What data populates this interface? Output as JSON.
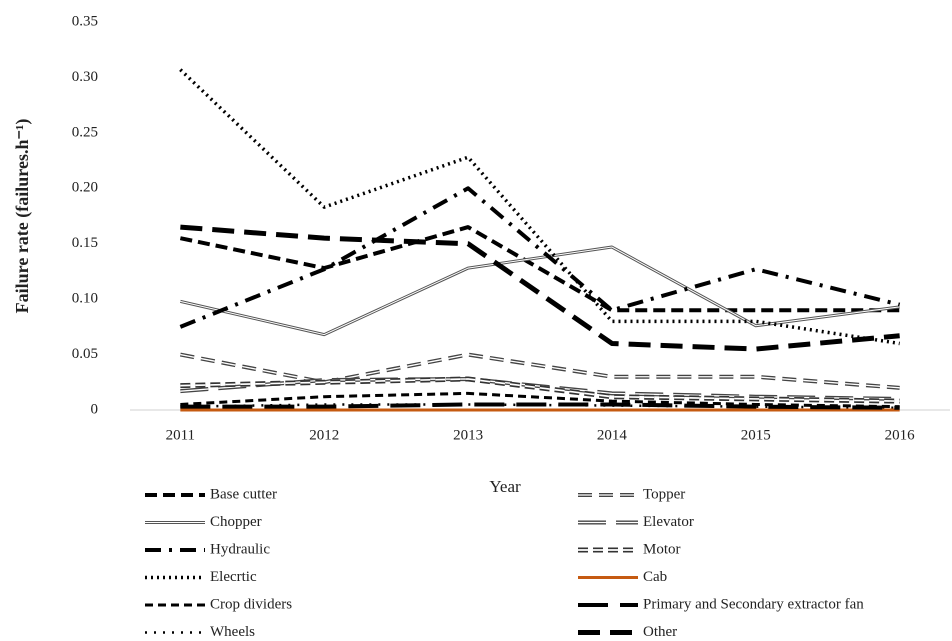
{
  "chart_data": {
    "type": "line",
    "x_label": "Year",
    "y_label": "Failure rate (failures.h⁻¹)",
    "x": [
      2011,
      2012,
      2013,
      2014,
      2015,
      2016
    ],
    "xlim": [
      2010.65,
      2016.35
    ],
    "xticks": [
      2011,
      2012,
      2013,
      2014,
      2015,
      2016
    ],
    "ylim": [
      0,
      0.35
    ],
    "yticks": [
      0,
      0.05,
      {
        "value": 0.1,
        "label": "0.10"
      },
      0.15,
      {
        "value": 0.2,
        "label": "0.20"
      },
      0.25,
      {
        "value": 0.3,
        "label": "0.30"
      },
      0.35
    ],
    "grid": false,
    "legend": "bottom",
    "series": [
      {
        "name": "Base cutter",
        "color": "#000000",
        "dash": "12,6",
        "width": 4,
        "double": false,
        "values": [
          0.155,
          0.128,
          0.165,
          0.09,
          0.09,
          0.09
        ]
      },
      {
        "name": "Chopper",
        "color": "#555555",
        "dash": "none",
        "width": 3,
        "double": true,
        "values": [
          0.098,
          0.068,
          0.128,
          0.147,
          0.076,
          0.093
        ]
      },
      {
        "name": "Hydraulic",
        "color": "#000000",
        "dash": "16,8,3,8",
        "width": 4,
        "double": false,
        "values": [
          0.075,
          0.127,
          0.2,
          0.09,
          0.127,
          0.095
        ]
      },
      {
        "name": "Elecrtic",
        "color": "#000000",
        "dash": "2,4",
        "width": 3.5,
        "double": false,
        "values": [
          0.307,
          0.183,
          0.228,
          0.08,
          0.08,
          0.06
        ]
      },
      {
        "name": "Crop dividers",
        "color": "#000000",
        "dash": "8,5",
        "width": 3,
        "double": false,
        "values": [
          0.005,
          0.012,
          0.015,
          0.008,
          0.005,
          0.003
        ]
      },
      {
        "name": "Wheels",
        "color": "#000000",
        "dash": "2,7",
        "width": 2.5,
        "double": false,
        "values": [
          0.003,
          0.005,
          0.005,
          0.004,
          0.003,
          0.002
        ]
      },
      {
        "name": "Topper",
        "color": "#444444",
        "dash": "14,7",
        "width": 4,
        "double": true,
        "values": [
          0.05,
          0.025,
          0.05,
          0.03,
          0.03,
          0.02
        ]
      },
      {
        "name": "Elevator",
        "color": "#444444",
        "dash": "28,10",
        "width": 4,
        "double": true,
        "values": [
          0.017,
          0.027,
          0.028,
          0.015,
          0.012,
          0.01
        ]
      },
      {
        "name": "Motor",
        "color": "#333333",
        "dash": "10,5",
        "width": 5,
        "double": true,
        "values": [
          0.022,
          0.025,
          0.028,
          0.012,
          0.01,
          0.008
        ]
      },
      {
        "name": "Cab",
        "color": "#c55a11",
        "dash": "none",
        "width": 3,
        "double": false,
        "values": [
          0,
          0,
          0,
          0,
          0,
          0
        ]
      },
      {
        "name": "Primary and Secondary extractor fan",
        "color": "#000000",
        "dash": "30,12",
        "width": 4,
        "double": false,
        "values": [
          0.003,
          0.003,
          0.005,
          0.005,
          0.003,
          0.002
        ]
      },
      {
        "name": "Other",
        "color": "#000000",
        "dash": "22,10",
        "width": 5,
        "double": false,
        "values": [
          0.165,
          0.155,
          0.15,
          0.06,
          0.055,
          0.067
        ]
      }
    ]
  }
}
